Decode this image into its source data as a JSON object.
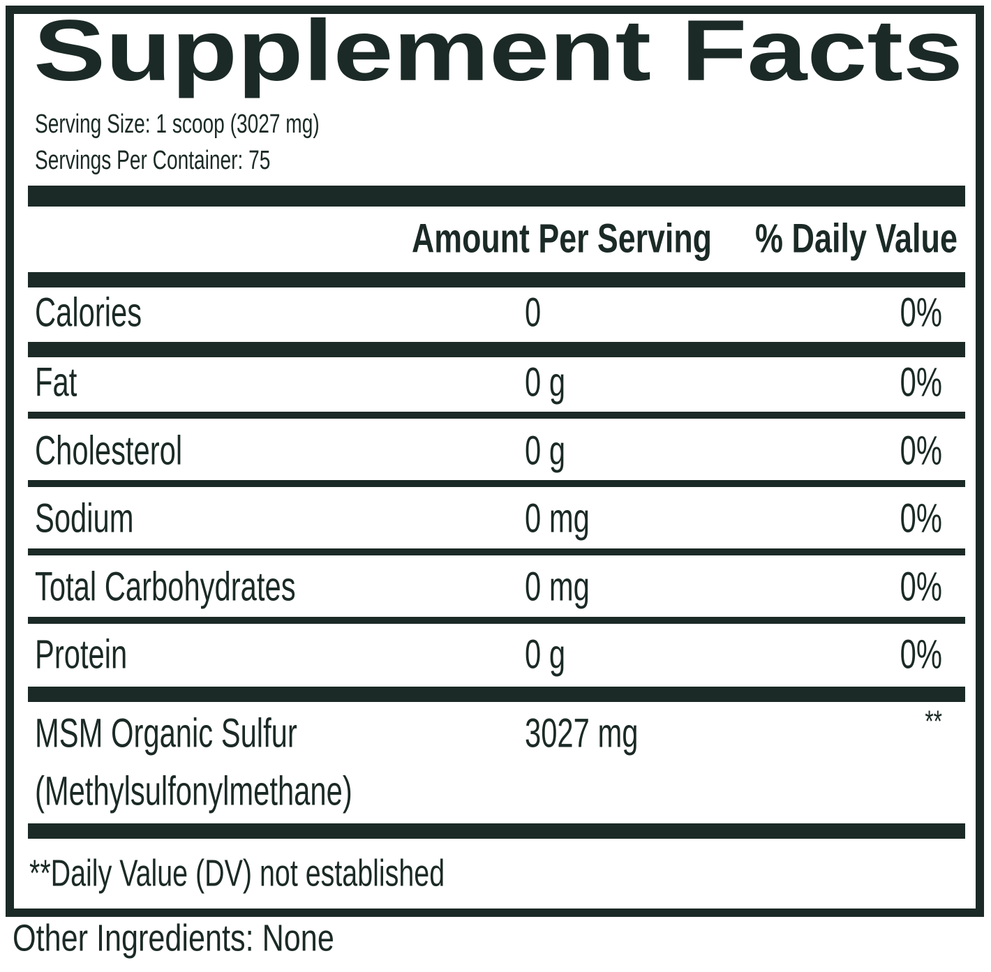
{
  "title": "Supplement Facts",
  "serving_size": "Serving Size: 1 scoop (3027 mg)",
  "servings_per_container": "Servings Per Container: 75",
  "table": {
    "header": [
      "Amount Per Serving",
      "% Daily Value"
    ],
    "rows": [
      {
        "name": [
          "Calories"
        ],
        "amount": "0",
        "dv": "0%"
      },
      {
        "name": [
          "Fat"
        ],
        "amount": "0 g",
        "dv": "0%"
      },
      {
        "name": [
          "Cholesterol"
        ],
        "amount": "0 g",
        "dv": "0%"
      },
      {
        "name": [
          "Sodium"
        ],
        "amount": "0 mg",
        "dv": "0%"
      },
      {
        "name": [
          "Total Carbohydrates"
        ],
        "amount": "0 mg",
        "dv": "0%"
      },
      {
        "name": [
          "Protein"
        ],
        "amount": "0 g",
        "dv": "0%"
      },
      {
        "name": [
          "MSM Organic Sulfur",
          "(Methylsulfonylmethane)"
        ],
        "amount": "3027 mg",
        "dv": "**"
      }
    ]
  },
  "footnote": "**Daily Value (DV) not established",
  "other_ingredients": "Other Ingredients: None"
}
